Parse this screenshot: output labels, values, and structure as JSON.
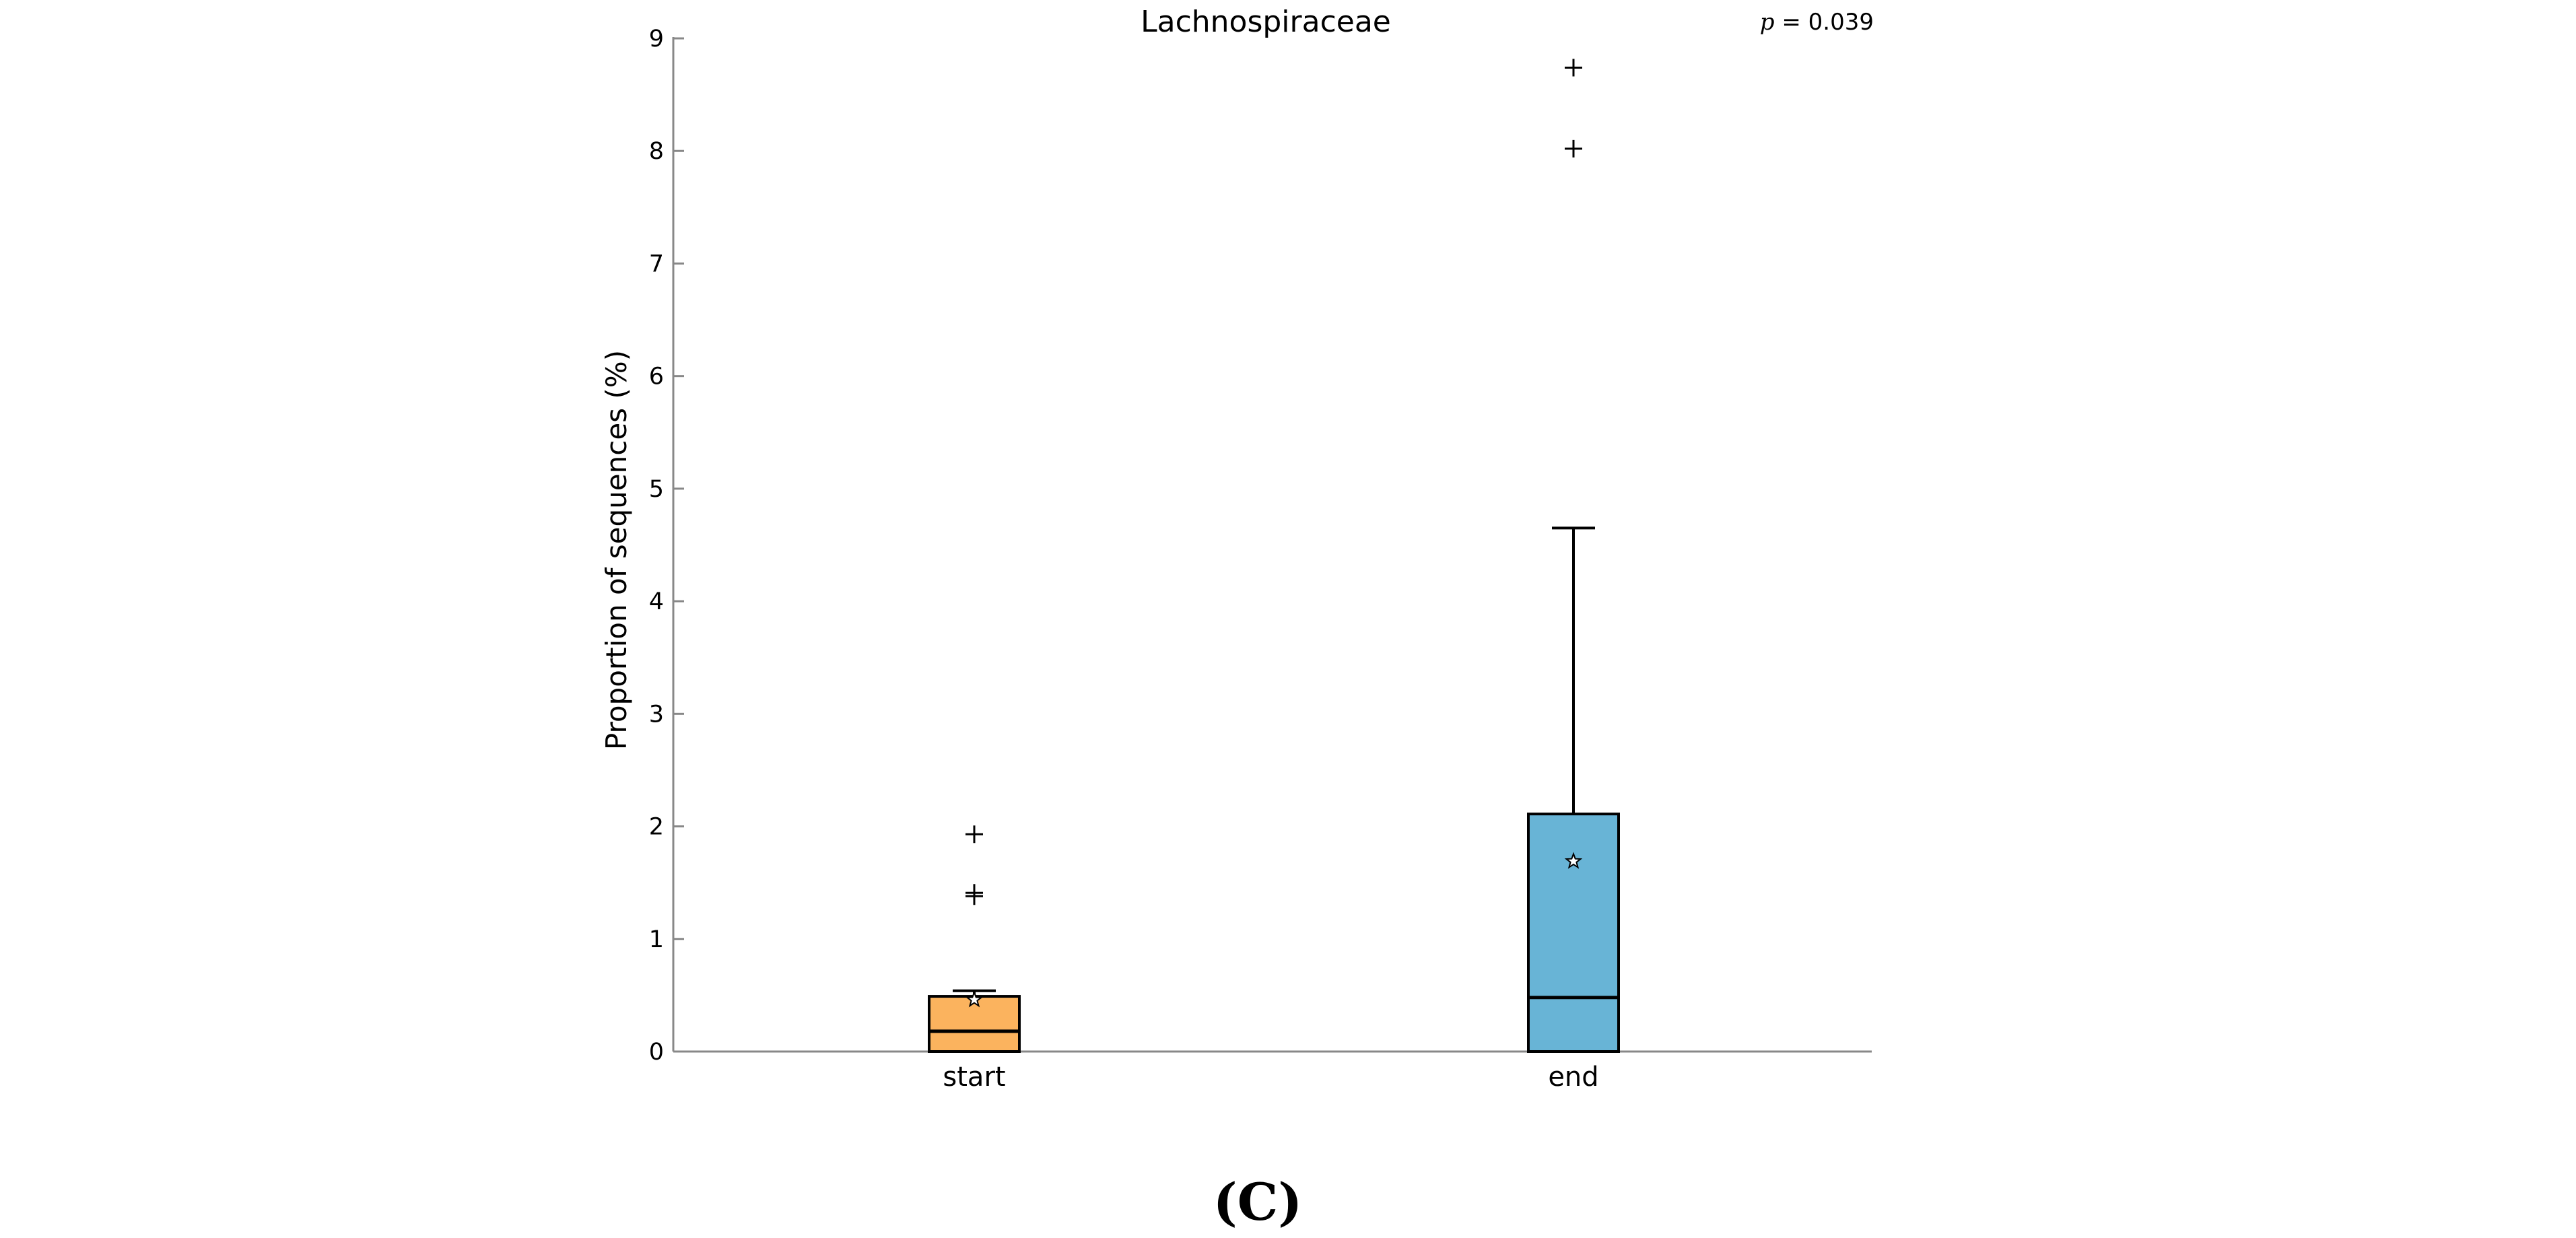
{
  "chart_data": {
    "type": "box",
    "title": "Lachnospiraceae",
    "annotation": {
      "prefix": "p",
      "text": " = 0.039"
    },
    "ylabel": "Proportion of sequences (%)",
    "xlabel": "",
    "ylim": [
      0,
      9
    ],
    "yticks": [
      "0",
      "1",
      "2",
      "3",
      "4",
      "5",
      "6",
      "7",
      "8",
      "9"
    ],
    "categories": [
      "start",
      "end"
    ],
    "boxes": [
      {
        "name": "start",
        "color": "#FBB35E",
        "q1": 0.0,
        "median": 0.18,
        "q3": 0.49,
        "whisker_low": 0.0,
        "whisker_high": 0.54,
        "mean": 0.46,
        "outliers": [
          1.93,
          1.41,
          1.38
        ]
      },
      {
        "name": "end",
        "color": "#68B4D6",
        "q1": 0.0,
        "median": 0.48,
        "q3": 2.11,
        "whisker_low": 0.0,
        "whisker_high": 4.65,
        "mean": 1.69,
        "outliers": [
          8.02,
          8.74
        ]
      }
    ]
  },
  "panel_label": "(C)"
}
